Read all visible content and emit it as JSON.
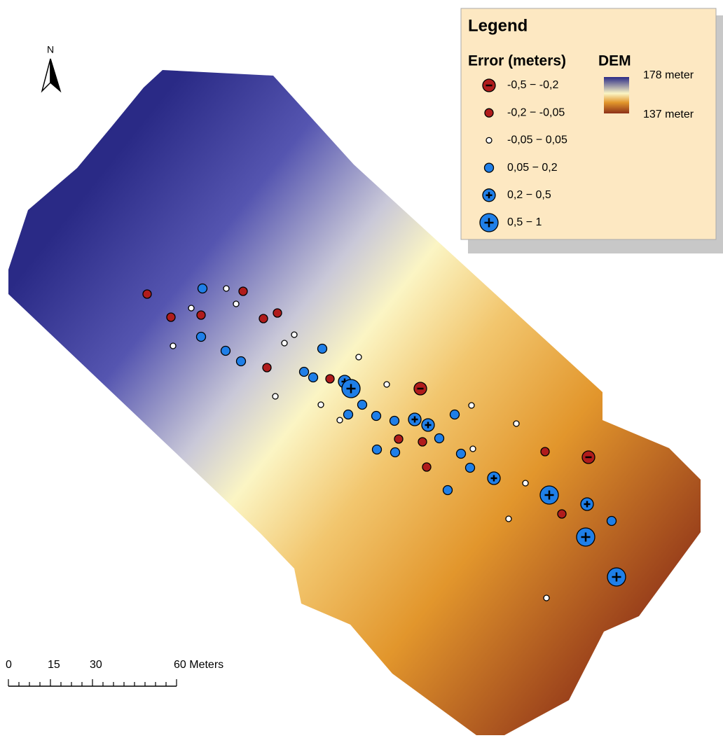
{
  "legend": {
    "title": "Legend",
    "error_heading": "Error (meters)",
    "dem_heading": "DEM",
    "error_classes": [
      "-0,5 − -0,2",
      "-0,2 − -0,05",
      "-0,05 − 0,05",
      "0,05 − 0,2",
      "0,2 − 0,5",
      "0,5 − 1"
    ],
    "dem_high": "178 meter",
    "dem_low": "137 meter"
  },
  "north_label": "N",
  "scale_bar": {
    "labels": [
      "0",
      "15",
      "30",
      "60 Meters"
    ]
  }
}
